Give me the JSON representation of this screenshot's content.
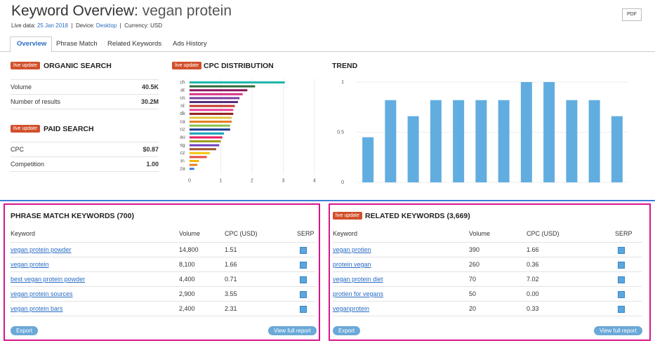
{
  "header": {
    "title": "Keyword Overview:",
    "keyword": "vegan protein",
    "live_label": "Live data:",
    "date": "25 Jan 2018",
    "device_label": "Device:",
    "device": "Desktop",
    "currency": "Currency: USD",
    "pdf": "PDF"
  },
  "tabs": [
    "Overview",
    "Phrase Match",
    "Related Keywords",
    "Ads History"
  ],
  "organic": {
    "badge": "live update",
    "title": "ORGANIC SEARCH",
    "rows": [
      [
        "Volume",
        "40.5K"
      ],
      [
        "Number of results",
        "30.2M"
      ]
    ]
  },
  "paid": {
    "badge": "live update",
    "title": "PAID SEARCH",
    "rows": [
      [
        "CPC",
        "$0.87"
      ],
      [
        "Competition",
        "1.00"
      ]
    ]
  },
  "cpc_chart": {
    "badge": "live update",
    "chart_data": {
      "type": "hbar",
      "title": "CPC DISTRIBUTION",
      "categories": [
        "ch",
        null,
        "at",
        null,
        "us",
        null,
        "nl",
        null,
        "dk",
        null,
        "ca",
        null,
        "nz",
        null,
        "au",
        null,
        "sg",
        null,
        "cz",
        null,
        "in",
        null,
        "za"
      ],
      "values": [
        3.05,
        2.1,
        1.85,
        1.7,
        1.6,
        1.55,
        1.45,
        1.4,
        1.4,
        1.35,
        1.35,
        1.3,
        1.3,
        1.1,
        1.05,
        1.0,
        0.95,
        0.85,
        0.65,
        0.55,
        0.3,
        0.25,
        0.15
      ],
      "colors": [
        "#1fb5ad",
        "#2e6b3a",
        "#8b1a5e",
        "#d63384",
        "#7b3fa0",
        "#5a2d82",
        "#c0392b",
        "#e84393",
        "#8e1b1b",
        "#e1c340",
        "#e67e22",
        "#8bc34a",
        "#1f3a93",
        "#17a2b8",
        "#e91e63",
        "#9e9d24",
        "#6f42c1",
        "#a0522d",
        "#f1c40f",
        "#e74c3c",
        "#f4b400",
        "#e67e22",
        "#3b7dd8"
      ],
      "xlim": [
        0,
        4
      ],
      "xticks": [
        0,
        1,
        2,
        3,
        4
      ]
    }
  },
  "trend_chart": {
    "chart_data": {
      "type": "bar",
      "title": "TREND",
      "values": [
        0.45,
        0.82,
        0.66,
        0.82,
        0.82,
        0.82,
        0.82,
        1,
        1,
        0.82,
        0.82,
        0.66
      ],
      "color": "#62ade0",
      "ylim": [
        0,
        1
      ],
      "yticks": [
        0,
        0.5,
        1
      ],
      "grid": true
    }
  },
  "phrase_match": {
    "title": "PHRASE MATCH KEYWORDS (700)",
    "columns": [
      "Keyword",
      "Volume",
      "CPC (USD)",
      "SERP"
    ],
    "rows": [
      [
        "vegan protein powder",
        "14,800",
        "1.51"
      ],
      [
        "vegan protein",
        "8,100",
        "1.66"
      ],
      [
        "best vegan protein powder",
        "4,400",
        "0.71"
      ],
      [
        "vegan protein sources",
        "2,900",
        "3.55"
      ],
      [
        "vegan protein bars",
        "2,400",
        "2.31"
      ]
    ],
    "export": "Export",
    "full_report": "View full report"
  },
  "related": {
    "badge": "live update",
    "title": "RELATED KEYWORDS (3,669)",
    "columns": [
      "Keyword",
      "Volume",
      "CPC (USD)",
      "SERP"
    ],
    "rows": [
      [
        "vegan protien",
        "390",
        "1.66"
      ],
      [
        "protein vegan",
        "260",
        "0.36"
      ],
      [
        "vegan protein diet",
        "70",
        "7.02"
      ],
      [
        "protien for vegans",
        "50",
        "0.00"
      ],
      [
        "veganprotein",
        "20",
        "0.33"
      ]
    ],
    "export": "Export",
    "full_report": "View full report"
  }
}
